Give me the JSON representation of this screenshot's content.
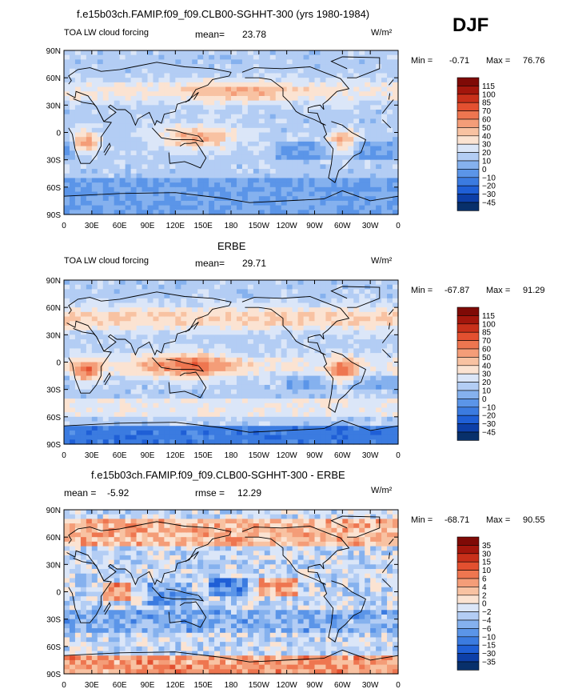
{
  "season_label": "DJF",
  "panels": [
    {
      "title": "f.e15b03ch.FAMIP.f09_f09.CLB00-SGHHT-300 (yrs 1980-1984)",
      "left_label": "TOA LW cloud forcing",
      "stat1": "mean=",
      "stat1_value": "23.78",
      "stat2": "",
      "stat2_value": "",
      "units": "W/m²",
      "min_label": "Min =",
      "min_value": "-0.71",
      "max_label": "Max =",
      "max_value": "76.76",
      "colorbar_levels": [
        "115",
        "100",
        "85",
        "70",
        "60",
        "50",
        "40",
        "30",
        "20",
        "10",
        "0",
        "−10",
        "−20",
        "−30",
        "−45"
      ],
      "field": "model"
    },
    {
      "title": "ERBE",
      "left_label": "TOA LW cloud forcing",
      "stat1": "mean=",
      "stat1_value": "29.71",
      "stat2": "",
      "stat2_value": "",
      "units": "W/m²",
      "min_label": "Min =",
      "min_value": "-67.87",
      "max_label": "Max =",
      "max_value": "91.29",
      "colorbar_levels": [
        "115",
        "100",
        "85",
        "70",
        "60",
        "50",
        "40",
        "30",
        "20",
        "10",
        "0",
        "−10",
        "−20",
        "−30",
        "−45"
      ],
      "field": "obs"
    },
    {
      "title": "f.e15b03ch.FAMIP.f09_f09.CLB00-SGHHT-300 - ERBE",
      "left_label": "",
      "stat1": "mean =",
      "stat1_value": "-5.92",
      "stat2": "rmse =",
      "stat2_value": "12.29",
      "units": "W/m²",
      "min_label": "Min =",
      "min_value": "-68.71",
      "max_label": "Max =",
      "max_value": "90.55",
      "colorbar_levels": [
        "35",
        "30",
        "15",
        "10",
        "6",
        "4",
        "2",
        "0",
        "−2",
        "−4",
        "−6",
        "−10",
        "−15",
        "−30",
        "−35"
      ],
      "field": "diff"
    }
  ],
  "lat_labels": [
    "90N",
    "60N",
    "30N",
    "0",
    "30S",
    "60S",
    "90S"
  ],
  "lon_labels": [
    "0",
    "30E",
    "60E",
    "90E",
    "120E",
    "150E",
    "180",
    "150W",
    "120W",
    "90W",
    "60W",
    "30W",
    "0"
  ],
  "colors": {
    "scale": [
      "#08306b",
      "#0d3fa8",
      "#1f5fd6",
      "#3b7be0",
      "#5b95e8",
      "#85b1ee",
      "#b3cdf4",
      "#dbe6f8",
      "#fbe3d2",
      "#f8c2a2",
      "#f49d78",
      "#ee7650",
      "#e35030",
      "#c8301a",
      "#a3160c",
      "#7f0a06"
    ]
  }
}
